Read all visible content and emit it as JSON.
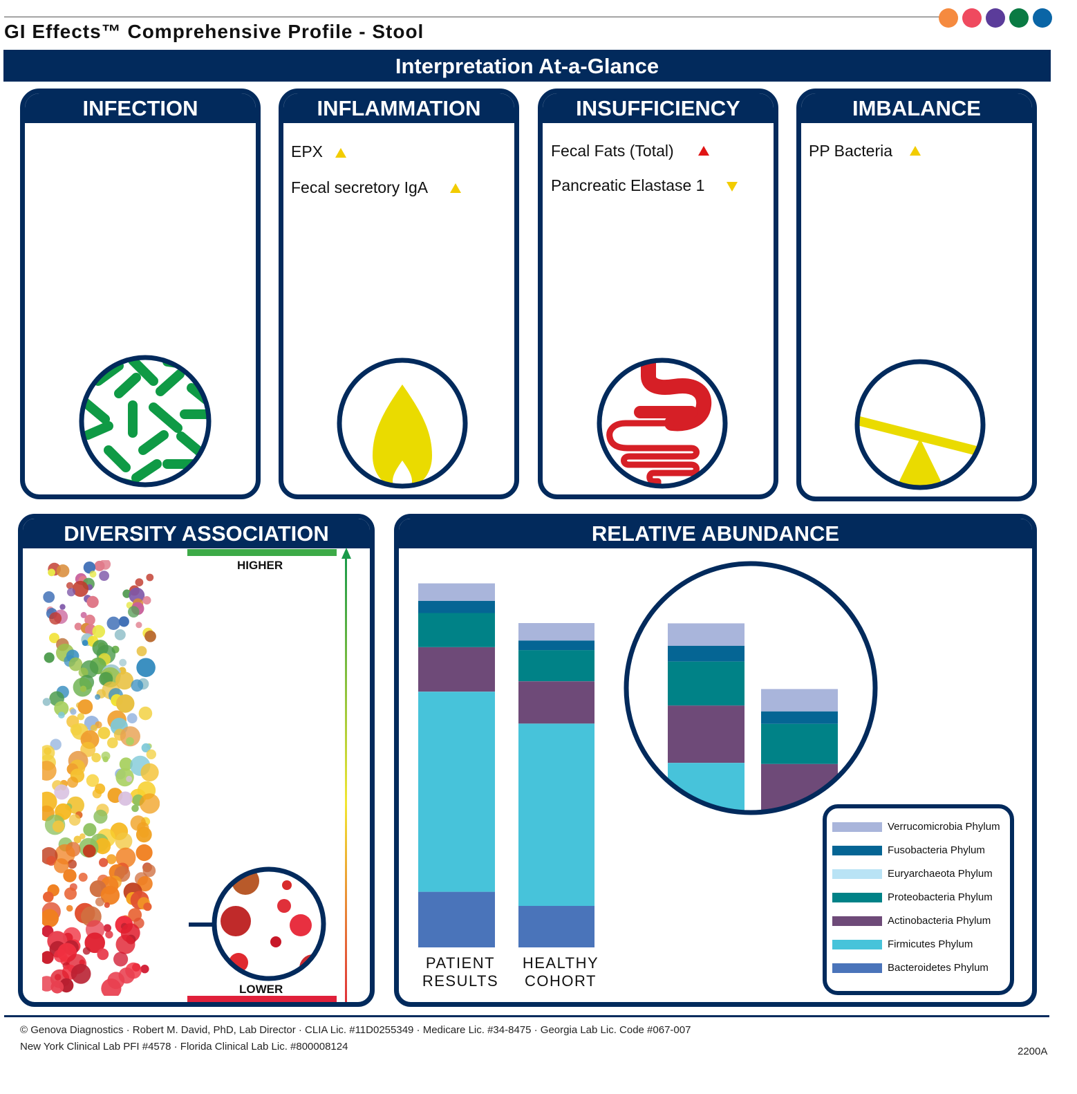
{
  "header": {
    "title": "GI Effects™ Comprehensive Profile - Stool",
    "brand_dots": [
      "#f58a3f",
      "#ef4a5f",
      "#5b3c9a",
      "#0a7a43",
      "#0a65a6"
    ]
  },
  "banner": {
    "title": "Interpretation At-a-Glance"
  },
  "cards": {
    "infection": {
      "title": "INFECTION",
      "icon": "bacteria-icon"
    },
    "inflammation": {
      "title": "INFLAMMATION",
      "icon": "flame-icon",
      "items": [
        {
          "label": "EPX",
          "flag": "high-yellow"
        },
        {
          "label": "Fecal secretory IgA",
          "flag": "high-yellow"
        }
      ]
    },
    "insufficiency": {
      "title": "INSUFFICIENCY",
      "icon": "intestine-icon",
      "items": [
        {
          "label": "Fecal Fats (Total)",
          "flag": "high-red"
        },
        {
          "label": "Pancreatic Elastase 1",
          "flag": "low-yellow"
        }
      ]
    },
    "imbalance": {
      "title": "IMBALANCE",
      "icon": "seesaw-icon",
      "items": [
        {
          "label": "PP Bacteria",
          "flag": "high-yellow"
        }
      ]
    }
  },
  "diversity": {
    "title": "DIVERSITY ASSOCIATION",
    "higher_label": "HIGHER",
    "lower_label": "LOWER",
    "patient_position": "lower"
  },
  "abundance": {
    "title": "RELATIVE ABUNDANCE",
    "bar_labels": {
      "patient_line1": "PATIENT",
      "patient_line2": "RESULTS",
      "healthy_line1": "HEALTHY",
      "healthy_line2": "COHORT"
    },
    "legend": [
      {
        "name": "Verrucomicrobia Phylum",
        "color": "#a9b5db"
      },
      {
        "name": "Fusobacteria Phylum",
        "color": "#056594"
      },
      {
        "name": "Euryarchaeota Phylum",
        "color": "#b9e3f5"
      },
      {
        "name": "Proteobacteria Phylum",
        "color": "#008287"
      },
      {
        "name": "Actinobacteria Phylum",
        "color": "#6e4a78"
      },
      {
        "name": "Firmicutes Phylum",
        "color": "#47c3da"
      },
      {
        "name": "Bacteroidetes Phylum",
        "color": "#4a74ba"
      }
    ]
  },
  "chart_data": {
    "type": "bar",
    "stacked": true,
    "categories": [
      "PATIENT RESULTS",
      "HEALTHY COHORT"
    ],
    "series": [
      {
        "name": "Bacteroidetes Phylum",
        "values": [
          15.0,
          11.2
        ]
      },
      {
        "name": "Firmicutes Phylum",
        "values": [
          54.0,
          49.2
        ]
      },
      {
        "name": "Actinobacteria Phylum",
        "values": [
          12.0,
          11.4
        ]
      },
      {
        "name": "Proteobacteria Phylum",
        "values": [
          9.2,
          8.4
        ]
      },
      {
        "name": "Euryarchaeota Phylum",
        "values": [
          0.0,
          0.0
        ]
      },
      {
        "name": "Fusobacteria Phylum",
        "values": [
          3.3,
          2.6
        ]
      },
      {
        "name": "Verrucomicrobia Phylum",
        "values": [
          4.7,
          4.7
        ]
      }
    ],
    "ylim": [
      0,
      100
    ],
    "grid": false,
    "legend": "bottom-right"
  },
  "footer": {
    "line1": "© Genova Diagnostics · Robert M. David, PhD, Lab Director · CLIA Lic. #11D0255349 · Medicare Lic. #34-8475 · Georgia Lab Lic. Code #067-007",
    "line2": "New York Clinical Lab PFI #4578 · Florida Clinical Lab Lic. #800008124",
    "code": "2200A"
  }
}
